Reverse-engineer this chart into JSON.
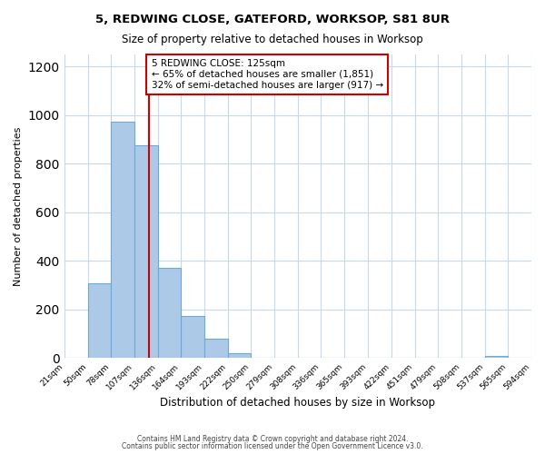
{
  "title": "5, REDWING CLOSE, GATEFORD, WORKSOP, S81 8UR",
  "subtitle": "Size of property relative to detached houses in Worksop",
  "xlabel": "Distribution of detached houses by size in Worksop",
  "ylabel": "Number of detached properties",
  "bar_color": "#adc9e8",
  "bar_edge_color": "#6aaad4",
  "bin_edges": [
    21,
    50,
    78,
    107,
    136,
    164,
    193,
    222,
    250,
    279,
    308,
    336,
    365,
    393,
    422,
    451,
    479,
    508,
    537,
    565,
    594
  ],
  "bin_labels": [
    "21sqm",
    "50sqm",
    "78sqm",
    "107sqm",
    "136sqm",
    "164sqm",
    "193sqm",
    "222sqm",
    "250sqm",
    "279sqm",
    "308sqm",
    "336sqm",
    "365sqm",
    "393sqm",
    "422sqm",
    "451sqm",
    "479sqm",
    "508sqm",
    "537sqm",
    "565sqm",
    "594sqm"
  ],
  "bar_heights": [
    0,
    310,
    975,
    875,
    370,
    175,
    80,
    20,
    0,
    0,
    0,
    0,
    0,
    0,
    0,
    0,
    0,
    0,
    10,
    0
  ],
  "ylim": [
    0,
    1250
  ],
  "yticks": [
    0,
    200,
    400,
    600,
    800,
    1000,
    1200
  ],
  "property_line_x": 125,
  "property_line_color": "#cc0000",
  "annotation_text": "5 REDWING CLOSE: 125sqm\n← 65% of detached houses are smaller (1,851)\n32% of semi-detached houses are larger (917) →",
  "annotation_box_color": "#ffffff",
  "annotation_box_edge_color": "#cc0000",
  "footer_line1": "Contains HM Land Registry data © Crown copyright and database right 2024.",
  "footer_line2": "Contains public sector information licensed under the Open Government Licence v3.0.",
  "background_color": "#ffffff",
  "grid_color": "#c8d8e8"
}
